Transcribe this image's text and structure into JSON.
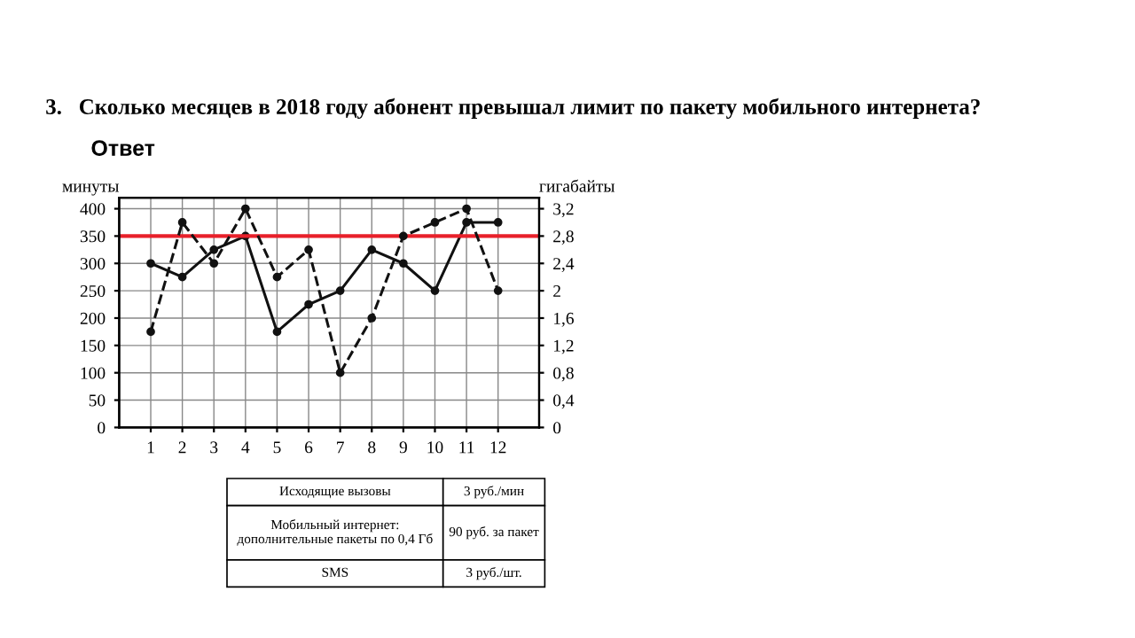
{
  "chart_data": {
    "type": "line",
    "title": "3.   Сколько месяцев в 2018 году абонент превышал лимит по пакету мобильного интернета?",
    "ylabel": "минуты",
    "y2label": "гигабайты",
    "x": [
      1,
      2,
      3,
      4,
      5,
      6,
      7,
      8,
      9,
      10,
      11,
      12
    ],
    "xlim": [
      0,
      13.3
    ],
    "xticks": [
      1,
      2,
      3,
      4,
      5,
      6,
      7,
      8,
      9,
      10,
      11,
      12
    ],
    "ylim": [
      0,
      420
    ],
    "yticks": [
      0,
      50,
      100,
      150,
      200,
      250,
      300,
      350,
      400
    ],
    "y2lim": [
      0,
      3.36
    ],
    "y2ticks": [
      0,
      {
        "value": 0.4,
        "label": "0,4"
      },
      {
        "value": 0.8,
        "label": "0,8"
      },
      {
        "value": 1.2,
        "label": "1,2"
      },
      {
        "value": 1.6,
        "label": "1,6"
      },
      2,
      {
        "value": 2.4,
        "label": "2,4"
      },
      {
        "value": 2.8,
        "label": "2,8"
      },
      {
        "value": 3.2,
        "label": "3,2"
      }
    ],
    "series": [
      {
        "color": "#111111",
        "line_style": "solid",
        "values": [
          300,
          275,
          325,
          350,
          175,
          225,
          250,
          325,
          300,
          250,
          375,
          375
        ]
      },
      {
        "color": "#111111",
        "line_style": "dashed",
        "axis": "y2",
        "values": [
          1.4,
          3.0,
          2.4,
          3.2,
          2.2,
          2.6,
          0.8,
          1.6,
          2.8,
          3.0,
          3.2,
          2.0
        ]
      }
    ],
    "marker": "circle",
    "grid": true,
    "legend": false,
    "ref_lines": [
      {
        "axis": "y",
        "value": 350,
        "color": "#e8202a",
        "line_style": "solid"
      }
    ],
    "annotations": [
      "Ответ",
      "Исходящие вызовы",
      "3 руб./мин",
      "Мобильный интернет:\nдополнительные пакеты по 0,4 Гб",
      "90 руб. за пакет",
      "SMS",
      "3 руб./шт."
    ]
  }
}
